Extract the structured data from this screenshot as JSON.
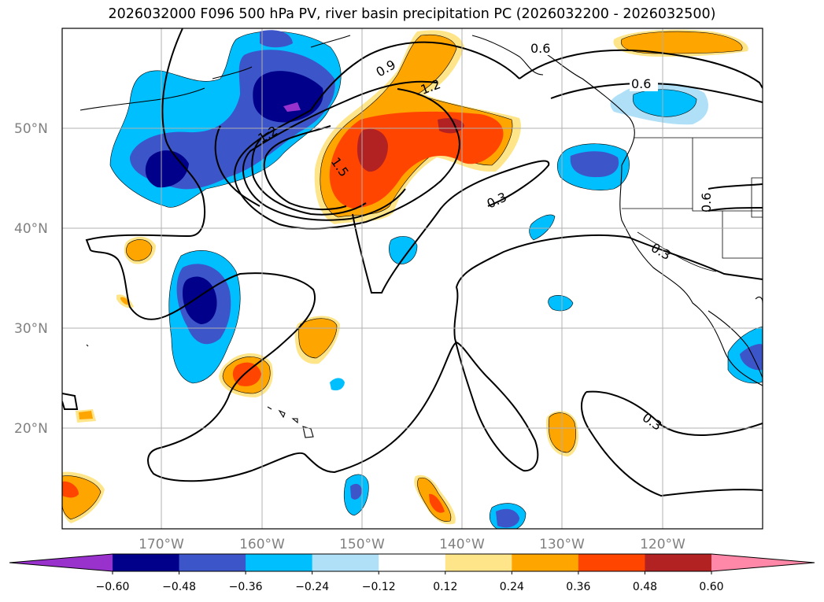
{
  "title": "2026032000 F096 500 hPa PV, river basin precipitation PC (2026032200 - 2026032500)",
  "lat_labels": [
    "50°N",
    "40°N",
    "30°N",
    "20°N"
  ],
  "lon_labels": [
    "170°W",
    "160°W",
    "150°W",
    "140°W",
    "130°W",
    "120°W"
  ],
  "contour_labels": [
    "0.6",
    "0.6",
    "0.9",
    "1.2",
    "1.2",
    "1.5",
    "0.3",
    "0.6",
    "0.3",
    "0.3"
  ],
  "colorbar": {
    "ticks": [
      "−0.60",
      "−0.48",
      "−0.36",
      "−0.24",
      "−0.12",
      "0.12",
      "0.24",
      "0.36",
      "0.48",
      "0.60"
    ],
    "colors": [
      "#9932cc",
      "#00008b",
      "#3c55c8",
      "#00bfff",
      "#b0e0f8",
      "#ffffff",
      "#ffe58a",
      "#ffa500",
      "#ff4500",
      "#b22222",
      "#ff88a8"
    ]
  }
}
